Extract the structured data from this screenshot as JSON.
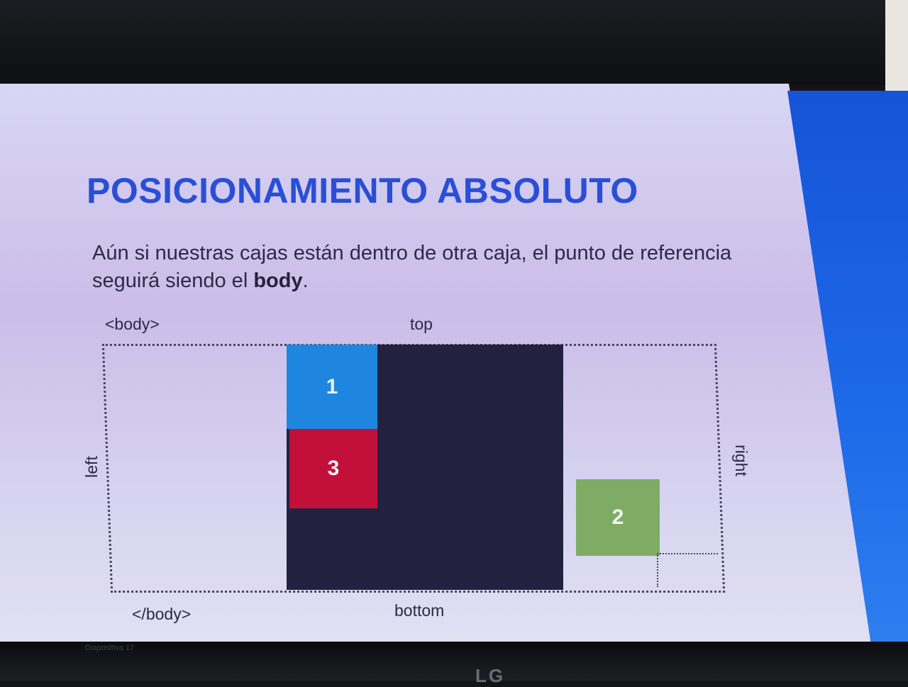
{
  "slide": {
    "title": "POSICIONAMIENTO ABSOLUTO",
    "paragraph_text": "Aún si nuestras cajas están dentro de otra caja, el punto de referencia seguirá siendo el",
    "paragraph_bold": "body",
    "paragraph_end": "."
  },
  "diagram": {
    "body_open": "<body>",
    "body_close": "</body>",
    "top_label": "top",
    "bottom_label": "bottom",
    "left_label": "left",
    "right_label": "right",
    "boxes": [
      {
        "label": "1",
        "color": "#1f86e0"
      },
      {
        "label": "3",
        "color": "#c2103a"
      },
      {
        "label": "2",
        "color": "#7fac65"
      }
    ],
    "container_color": "#22213f"
  },
  "theme": {
    "title_color": "#2a4fd6",
    "accent_panel": "#1554d6"
  },
  "monitor": {
    "brand": "LG",
    "taskbar_item": "Diapositiva 17"
  }
}
